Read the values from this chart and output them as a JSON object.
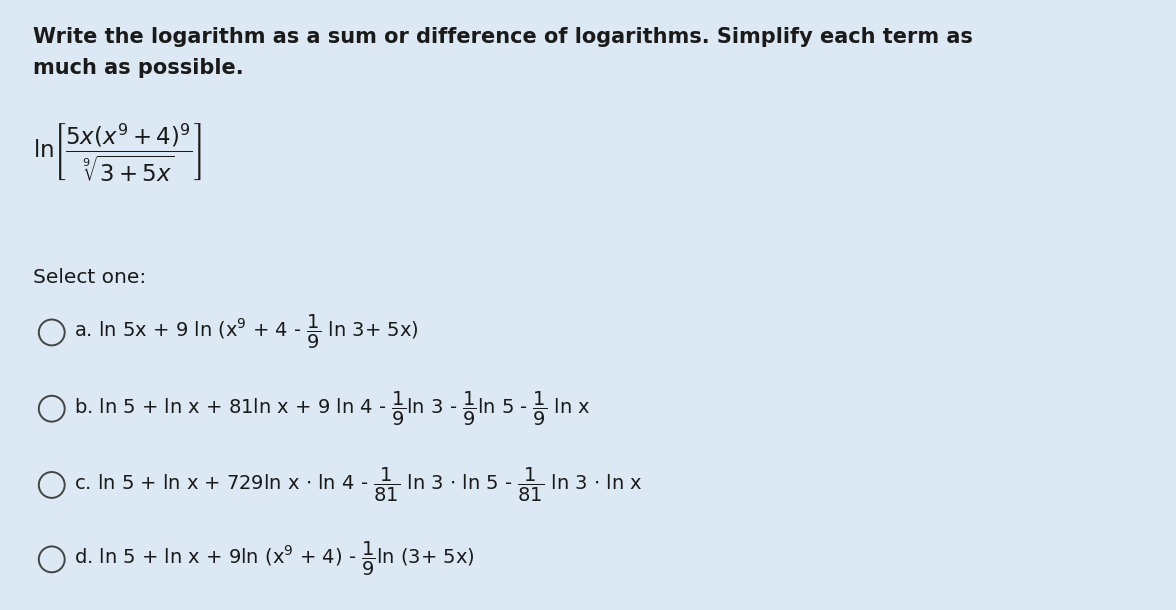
{
  "background_color": "#dce8f3",
  "text_color": "#1a1a1a",
  "title_line1": "Write the logarithm as a sum or difference of logarithms. Simplify each term as",
  "title_line2": "much as possible.",
  "title_fontsize": 15.0,
  "select_text": "Select one:",
  "select_fontsize": 14.5,
  "option_fontsize": 14.0,
  "formula_fontsize": 13.5,
  "circle_color": "#444444",
  "circle_r": 0.011
}
